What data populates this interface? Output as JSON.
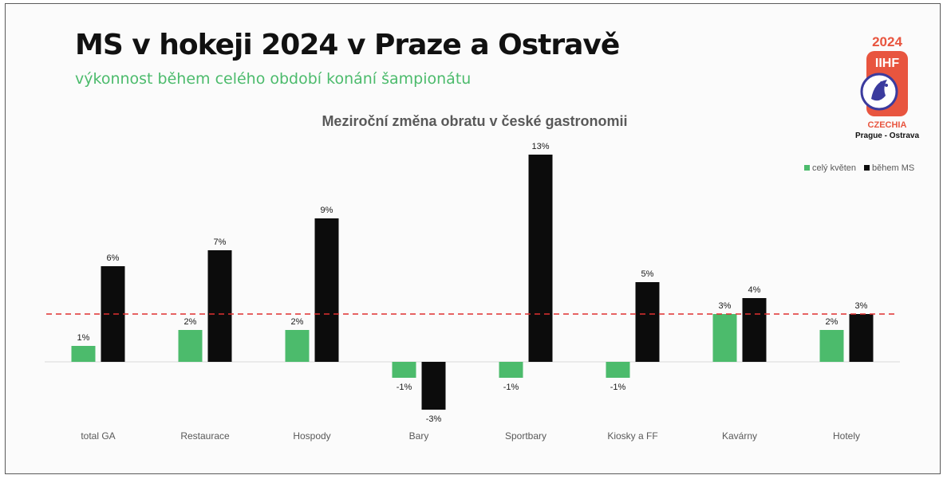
{
  "header": {
    "title": "MS v hokeji 2024 v Praze a Ostravě",
    "subtitle": "výkonnost během celého období konání šampionátu"
  },
  "logo": {
    "year": "2024",
    "brand": "IIHF",
    "country": "CZECHIA",
    "cities": "Prague - Ostrava",
    "accent_color": "#e8553f",
    "emblem_color": "#3b3b9e"
  },
  "colors": {
    "series_a": "#4cbb6c",
    "series_b": "#0c0c0c",
    "reference_line": "#e03030"
  },
  "chart_data": {
    "type": "bar",
    "title": "Meziroční změna obratu v české gastronomii",
    "categories": [
      "total GA",
      "Restaurace",
      "Hospody",
      "Bary",
      "Sportbary",
      "Kiosky a FF",
      "Kavárny",
      "Hotely"
    ],
    "series": [
      {
        "name": "celý květen",
        "values": [
          1,
          2,
          2,
          -1,
          -1,
          -1,
          3,
          2
        ],
        "labels": [
          "1%",
          "2%",
          "2%",
          "-1%",
          "-1%",
          "-1%",
          "3%",
          "2%"
        ]
      },
      {
        "name": "během MS",
        "values": [
          6,
          7,
          9,
          -3,
          13,
          5,
          4,
          3
        ],
        "labels": [
          "6%",
          "7%",
          "9%",
          "-3%",
          "13%",
          "5%",
          "4%",
          "3%"
        ]
      }
    ],
    "reference_line": {
      "value": 3,
      "style": "dashed"
    },
    "ylim": [
      -3,
      13
    ],
    "legend": "top-right",
    "grid": false
  }
}
